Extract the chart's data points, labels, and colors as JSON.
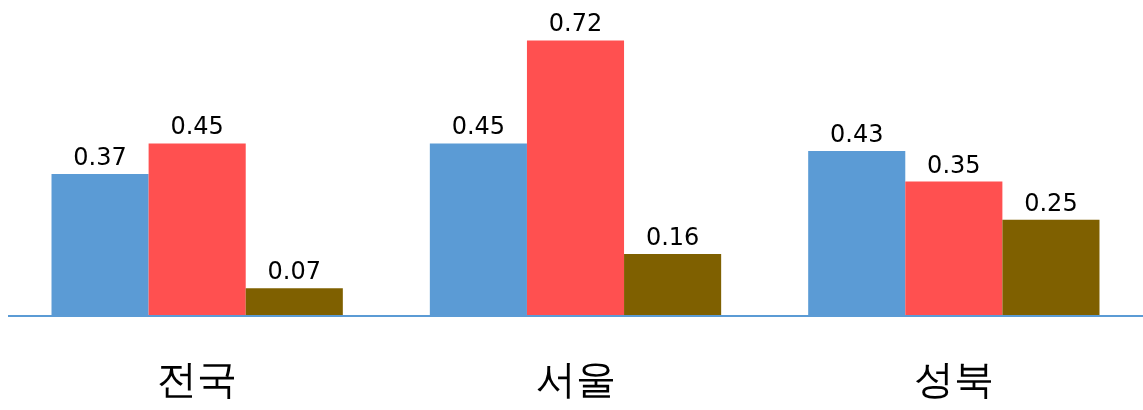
{
  "chart_data": {
    "type": "bar",
    "categories": [
      "전국",
      "서울",
      "성북"
    ],
    "series": [
      {
        "color": "#5b9bd5",
        "values": [
          0.37,
          0.45,
          0.43
        ]
      },
      {
        "color": "#ff5050",
        "values": [
          0.45,
          0.72,
          0.35
        ]
      },
      {
        "color": "#7f6000",
        "values": [
          0.07,
          0.16,
          0.25
        ]
      }
    ],
    "data_labels": true
  }
}
